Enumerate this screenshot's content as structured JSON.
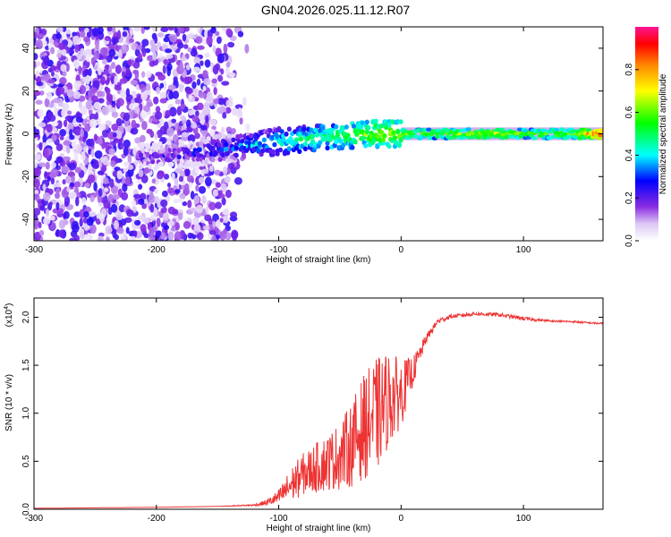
{
  "figure_title": "GN04.2026.025.11.12.R07",
  "colors": {
    "snr_line": "#ee3333",
    "axis": "#000000",
    "colormap": [
      "#ffffff",
      "#dcc8f5",
      "#8a2be2",
      "#0000ff",
      "#00ffff",
      "#00ff00",
      "#ffff00",
      "#ff8800",
      "#ff0000",
      "#ff1493"
    ]
  },
  "chart_data": [
    {
      "type": "heatmap",
      "xlabel": "Height of straight line (km)",
      "ylabel": "Frequency (Hz)",
      "xlim": [
        -300,
        165
      ],
      "ylim": [
        -50,
        50
      ],
      "x_ticks": [
        "-300",
        "-200",
        "-100",
        "0",
        "100"
      ],
      "y_ticks": [
        "40",
        "20",
        "0",
        "-20",
        "-40"
      ],
      "x_tick_values": [
        -300,
        -200,
        -100,
        0,
        100
      ],
      "y_tick_values": [
        40,
        20,
        0,
        -20,
        -40
      ],
      "colorbar": {
        "label": "Normalized spectral amplitude",
        "range": [
          0.0,
          1.0
        ],
        "ticks": [
          "0.0",
          "0.2",
          "0.4",
          "0.6",
          "0.8"
        ],
        "tick_values": [
          0.0,
          0.2,
          0.4,
          0.6,
          0.8
        ]
      },
      "ridge": {
        "x": [
          -210,
          -190,
          -170,
          -150,
          -130,
          -110,
          -90,
          -70,
          -50,
          -30,
          -10,
          0,
          20,
          40,
          60,
          80,
          100,
          120,
          140,
          165
        ],
        "frequency": [
          -11,
          -10,
          -9,
          -7,
          -6,
          -4,
          -3,
          -2,
          -1,
          0,
          0,
          0,
          0,
          0,
          0,
          0,
          0,
          0,
          0,
          0
        ],
        "amplitude": [
          0.2,
          0.22,
          0.25,
          0.3,
          0.35,
          0.4,
          0.45,
          0.5,
          0.55,
          0.6,
          0.65,
          0.62,
          0.6,
          0.62,
          0.64,
          0.68,
          0.6,
          0.6,
          0.62,
          0.9
        ]
      }
    },
    {
      "type": "line",
      "xlabel": "Height of straight line (km)",
      "ylabel": "SNR (10 * v/v)",
      "y_multiplier": "(x10",
      "y_multiplier_exp": "4",
      "y_multiplier_close": ")",
      "xlim": [
        -300,
        165
      ],
      "ylim": [
        0.0,
        2.2
      ],
      "x_ticks": [
        "-300",
        "-200",
        "-100",
        "0",
        "100"
      ],
      "y_ticks": [
        "0.0",
        "0.5",
        "1.0",
        "1.5",
        "2.0"
      ],
      "x_tick_values": [
        -300,
        -200,
        -100,
        0,
        100
      ],
      "y_tick_values": [
        0.0,
        0.5,
        1.0,
        1.5,
        2.0
      ],
      "series": [
        {
          "x": [
            -300,
            -200,
            -150,
            -120,
            -110,
            -100,
            -90,
            -80,
            -70,
            -60,
            -50,
            -40,
            -30,
            -20,
            -10,
            0,
            10,
            20,
            30,
            40,
            60,
            80,
            100,
            120,
            140,
            165
          ],
          "y": [
            0.01,
            0.02,
            0.03,
            0.04,
            0.06,
            0.1,
            0.2,
            0.3,
            0.35,
            0.4,
            0.45,
            0.55,
            0.7,
            0.8,
            1.0,
            1.1,
            1.4,
            1.75,
            1.95,
            2.0,
            2.03,
            2.02,
            1.98,
            1.96,
            1.95,
            1.93
          ],
          "noise": [
            0,
            0,
            0,
            0.01,
            0.03,
            0.08,
            0.18,
            0.22,
            0.26,
            0.3,
            0.35,
            0.45,
            0.55,
            0.6,
            0.5,
            0.35,
            0.15,
            0.05,
            0.03,
            0.02,
            0.02,
            0.02,
            0.02,
            0.01,
            0.01,
            0.01
          ]
        }
      ]
    }
  ]
}
